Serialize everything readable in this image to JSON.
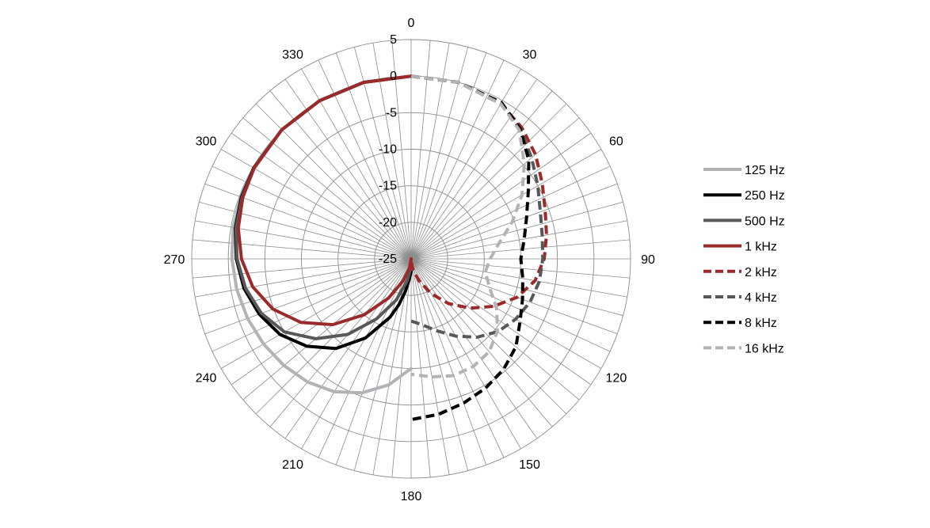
{
  "chart_data": {
    "type": "polar-line",
    "title": "",
    "angle_ticks": [
      "0",
      "30",
      "60",
      "90",
      "120",
      "150",
      "180",
      "210",
      "240",
      "270",
      "300",
      "330"
    ],
    "radial_ticks": [
      5,
      0,
      -5,
      -10,
      -15,
      -20,
      -25
    ],
    "radial_range": [
      -25,
      5
    ],
    "angular_gridline_step_deg": 5,
    "legend_position": "right",
    "series": [
      {
        "name": "125 Hz",
        "color": "#b3b3b7",
        "dash": "solid",
        "points": [
          [
            180,
            -10.0
          ],
          [
            190,
            -7.5
          ],
          [
            200,
            -5.5
          ],
          [
            210,
            -4.0
          ],
          [
            220,
            -3.0
          ],
          [
            230,
            -2.3
          ],
          [
            240,
            -1.7
          ],
          [
            250,
            -1.2
          ],
          [
            260,
            -0.8
          ],
          [
            270,
            -0.5
          ],
          [
            280,
            -0.3
          ],
          [
            290,
            -0.2
          ],
          [
            300,
            -0.1
          ],
          [
            315,
            0
          ],
          [
            330,
            0
          ],
          [
            345,
            0
          ],
          [
            360,
            0
          ]
        ]
      },
      {
        "name": "250 Hz",
        "color": "#000000",
        "dash": "solid",
        "points": [
          [
            180,
            -23.3
          ],
          [
            185,
            -22.2
          ],
          [
            190,
            -20.5
          ],
          [
            195,
            -18.5
          ],
          [
            200,
            -16.5
          ],
          [
            210,
            -12.5
          ],
          [
            220,
            -9.0
          ],
          [
            230,
            -6.4
          ],
          [
            240,
            -4.3
          ],
          [
            250,
            -2.9
          ],
          [
            260,
            -1.8
          ],
          [
            270,
            -1.1
          ],
          [
            280,
            -0.6
          ],
          [
            290,
            -0.3
          ],
          [
            300,
            -0.15
          ],
          [
            315,
            0
          ],
          [
            330,
            0
          ],
          [
            345,
            0
          ],
          [
            360,
            0
          ]
        ]
      },
      {
        "name": "500 Hz",
        "color": "#58585a",
        "dash": "solid",
        "points": [
          [
            180,
            -24.0
          ],
          [
            190,
            -22.0
          ],
          [
            200,
            -19.0
          ],
          [
            210,
            -15.5
          ],
          [
            220,
            -11.5
          ],
          [
            230,
            -8.0
          ],
          [
            240,
            -5.0
          ],
          [
            250,
            -3.2
          ],
          [
            260,
            -2.0
          ],
          [
            270,
            -1.2
          ],
          [
            280,
            -0.7
          ],
          [
            290,
            -0.4
          ],
          [
            300,
            -0.2
          ],
          [
            315,
            0
          ],
          [
            330,
            0
          ],
          [
            345,
            0
          ],
          [
            360,
            0
          ]
        ]
      },
      {
        "name": "1 kHz",
        "color": "#9b2a2a",
        "dash": "solid",
        "points": [
          [
            180,
            -25.0
          ],
          [
            190,
            -23.8
          ],
          [
            200,
            -21.8
          ],
          [
            210,
            -18.8
          ],
          [
            220,
            -15.0
          ],
          [
            230,
            -11.0
          ],
          [
            240,
            -7.6
          ],
          [
            250,
            -4.9
          ],
          [
            260,
            -3.0
          ],
          [
            270,
            -1.8
          ],
          [
            280,
            -1.0
          ],
          [
            290,
            -0.5
          ],
          [
            300,
            -0.2
          ],
          [
            315,
            0
          ],
          [
            330,
            0
          ],
          [
            345,
            0
          ],
          [
            360,
            0
          ]
        ]
      },
      {
        "name": "2 kHz",
        "color": "#9b2a2a",
        "dash": "dashed",
        "points": [
          [
            0,
            0
          ],
          [
            15,
            0
          ],
          [
            30,
            -0.5
          ],
          [
            40,
            -1.5
          ],
          [
            50,
            -2.8
          ],
          [
            60,
            -4.3
          ],
          [
            70,
            -5.5
          ],
          [
            80,
            -6.2
          ],
          [
            90,
            -6.8
          ],
          [
            100,
            -7.8
          ],
          [
            110,
            -9.6
          ],
          [
            120,
            -12.0
          ],
          [
            130,
            -14.5
          ],
          [
            140,
            -17.0
          ],
          [
            150,
            -19.5
          ],
          [
            160,
            -21.8
          ],
          [
            170,
            -23.4
          ],
          [
            180,
            -24.6
          ]
        ]
      },
      {
        "name": "4 kHz",
        "color": "#58585a",
        "dash": "dashed",
        "points": [
          [
            0,
            0
          ],
          [
            15,
            0
          ],
          [
            30,
            -0.5
          ],
          [
            40,
            -1.8
          ],
          [
            50,
            -3.5
          ],
          [
            60,
            -5.0
          ],
          [
            70,
            -6.2
          ],
          [
            80,
            -6.8
          ],
          [
            90,
            -7.0
          ],
          [
            100,
            -7.2
          ],
          [
            110,
            -7.7
          ],
          [
            120,
            -8.5
          ],
          [
            130,
            -9.5
          ],
          [
            140,
            -11.0
          ],
          [
            150,
            -12.8
          ],
          [
            160,
            -14.5
          ],
          [
            170,
            -15.8
          ],
          [
            180,
            -16.5
          ]
        ]
      },
      {
        "name": "8 kHz",
        "color": "#000000",
        "dash": "dashed",
        "points": [
          [
            0,
            0
          ],
          [
            15,
            0
          ],
          [
            30,
            -0.3
          ],
          [
            40,
            -1.8
          ],
          [
            50,
            -4.0
          ],
          [
            60,
            -6.5
          ],
          [
            70,
            -8.2
          ],
          [
            80,
            -9.3
          ],
          [
            90,
            -10.0
          ],
          [
            100,
            -9.5
          ],
          [
            110,
            -8.8
          ],
          [
            120,
            -7.8
          ],
          [
            130,
            -6.3
          ],
          [
            140,
            -5.3
          ],
          [
            150,
            -4.6
          ],
          [
            160,
            -4.0
          ],
          [
            170,
            -3.4
          ],
          [
            180,
            -3.0
          ]
        ]
      },
      {
        "name": "16 kHz",
        "color": "#b3b3b7",
        "dash": "dashed",
        "points": [
          [
            0,
            0
          ],
          [
            15,
            0
          ],
          [
            30,
            -0.5
          ],
          [
            40,
            -2.0
          ],
          [
            50,
            -4.8
          ],
          [
            60,
            -7.5
          ],
          [
            70,
            -10.3
          ],
          [
            80,
            -12.8
          ],
          [
            90,
            -14.2
          ],
          [
            100,
            -14.7
          ],
          [
            110,
            -13.6
          ],
          [
            120,
            -11.5
          ],
          [
            130,
            -9.6
          ],
          [
            140,
            -8.4
          ],
          [
            150,
            -8.0
          ],
          [
            160,
            -8.0
          ],
          [
            170,
            -8.6
          ],
          [
            180,
            -9.2
          ]
        ]
      }
    ]
  }
}
